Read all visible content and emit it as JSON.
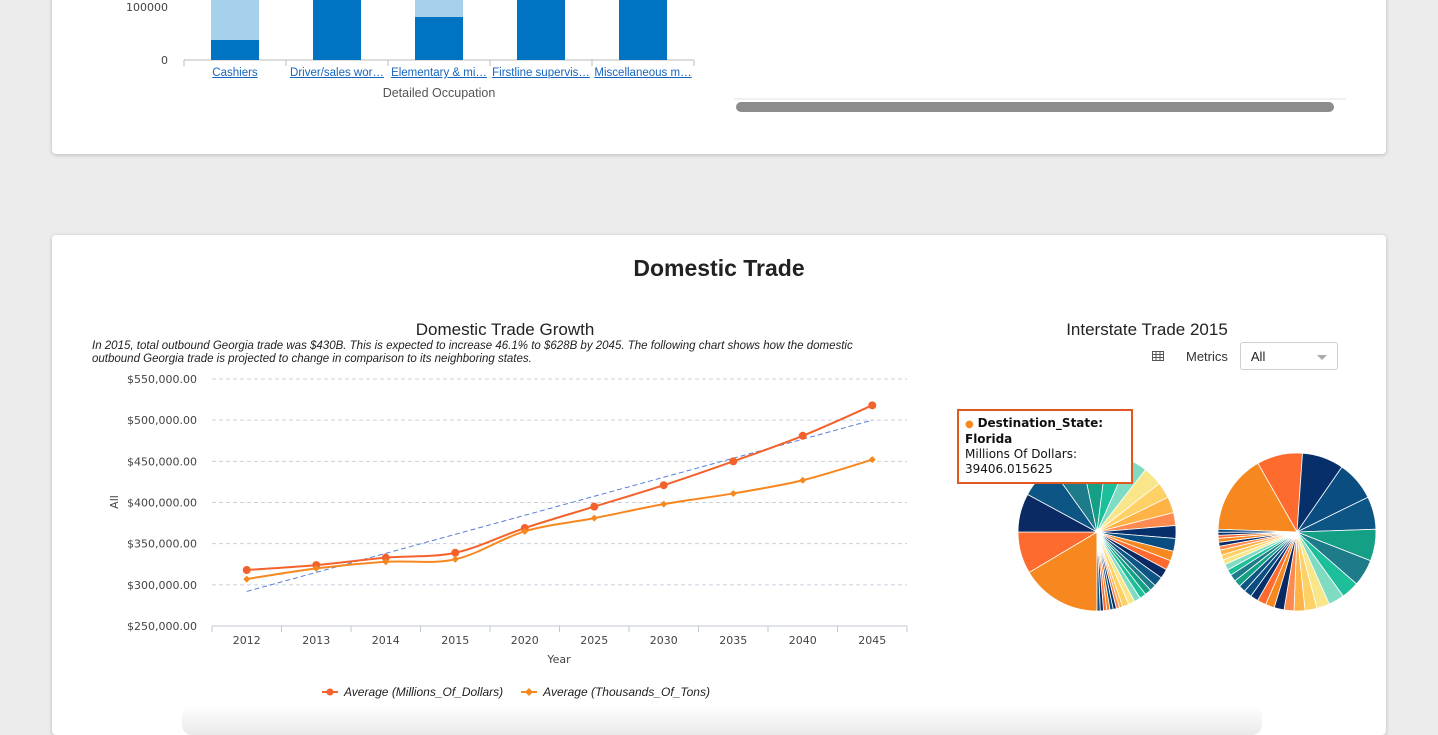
{
  "top_chart": {
    "x_label": "Detailed Occupation",
    "y_ticks": [
      "100000",
      "0"
    ],
    "categories": [
      "Cashiers",
      "Driver/sales wor…",
      "Elementary & mi…",
      "Firstline supervis…",
      "Miscellaneous m…"
    ],
    "colors": {
      "dark": "#0074c2",
      "light": "#a6d1ea"
    }
  },
  "section_title": "Domestic Trade",
  "chart_data": [
    {
      "type": "line",
      "title": "Domestic Trade Growth",
      "subtitle": "In 2015, total outbound Georgia trade was $430B. This is expected to increase 46.1% to $628B by 2045. The following chart shows how the domestic outbound Georgia trade is projected to change in comparison to its neighboring states.",
      "xlabel": "Year",
      "ylabel": "All",
      "x": [
        "2012",
        "2013",
        "2014",
        "2015",
        "2020",
        "2025",
        "2030",
        "2035",
        "2040",
        "2045"
      ],
      "ylim": [
        250000,
        550000
      ],
      "y_ticks": [
        "$550,000.00",
        "$500,000.00",
        "$450,000.00",
        "$400,000.00",
        "$350,000.00",
        "$300,000.00",
        "$250,000.00"
      ],
      "grid": true,
      "legend": "bottom",
      "series": [
        {
          "name": "Average (Millions_Of_Dollars)",
          "color": "#f4622c",
          "values": [
            318000,
            324000,
            333000,
            339000,
            369000,
            395000,
            421000,
            450000,
            481000,
            518000
          ]
        },
        {
          "name": "Average (Thousands_Of_Tons)",
          "color": "#f6881f",
          "values": [
            307000,
            320000,
            328000,
            331000,
            365000,
            381000,
            398000,
            411000,
            427000,
            452000
          ]
        }
      ],
      "trendline": {
        "color": "#5b7fd6",
        "values": [
          292000,
          500000
        ]
      }
    },
    {
      "type": "pie",
      "title": "Interstate Trade 2015",
      "pies": [
        {
          "values": [
            25,
            13,
            12,
            11,
            10,
            8,
            7,
            6,
            6,
            5,
            5,
            4,
            4,
            4,
            3,
            3,
            3,
            3,
            2,
            2,
            2,
            2,
            2,
            2,
            1,
            1,
            1,
            1,
            1,
            1,
            1,
            1
          ]
        },
        {
          "values": [
            80,
            46,
            42,
            40,
            33,
            32,
            27,
            18,
            16,
            13,
            12,
            11,
            10,
            10,
            9,
            9,
            8,
            8,
            7,
            7,
            7,
            6,
            6,
            5,
            5,
            5,
            4,
            4,
            4,
            3,
            3,
            3
          ]
        }
      ],
      "palette": [
        "#ff6a2f",
        "#0b2a63",
        "#0d5584",
        "#1e7b8a",
        "#14a085",
        "#1cbf9a",
        "#7fdcc2",
        "#f9e58a",
        "#fdd166",
        "#ffb347",
        "#f6881f",
        "#ff8a4f",
        "#07306a",
        "#0a4d80"
      ]
    }
  ],
  "metrics": {
    "label": "Metrics",
    "value": "All"
  },
  "tooltip": {
    "field": "Destination_State:",
    "state": "Florida",
    "metric": "Millions Of Dollars:",
    "value": "39406.015625"
  }
}
